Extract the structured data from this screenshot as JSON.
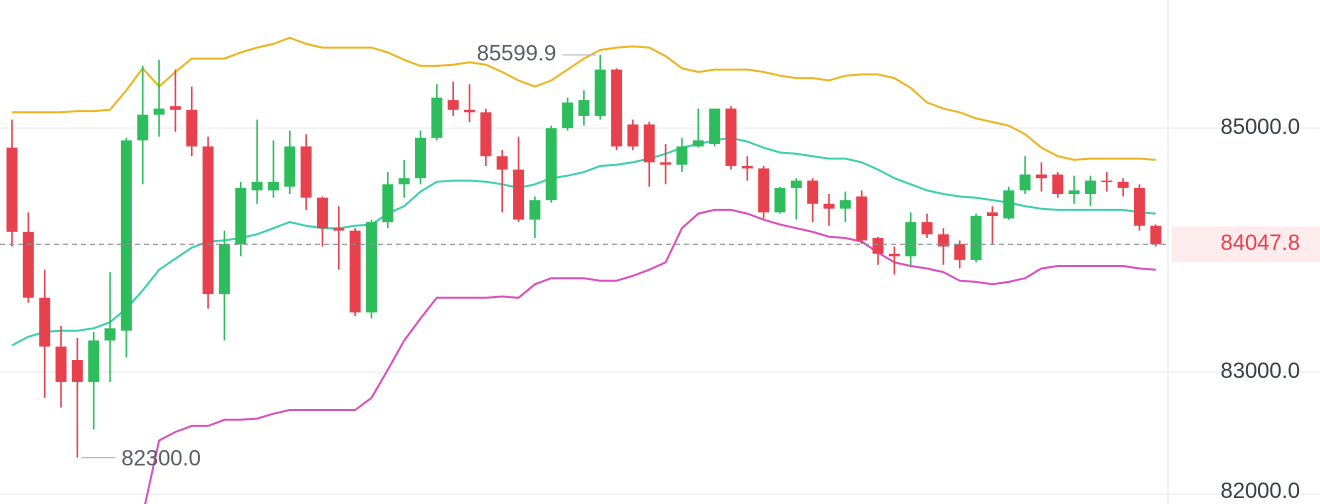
{
  "chart_data": {
    "type": "candlestick",
    "up_color": "#2ebd5c",
    "down_color": "#e8414e",
    "ylim": [
      81920,
      86050
    ],
    "yticks": [
      {
        "value": 82000,
        "label": "82000.0"
      },
      {
        "value": 83000,
        "label": "83000.0"
      },
      {
        "value": 85000,
        "label": "85000.0"
      }
    ],
    "grid": true,
    "last_price": 84047.8,
    "open": [
      84840,
      84150,
      83610,
      83210,
      83100,
      82920,
      83260,
      83340,
      84900,
      85110,
      85180,
      85150,
      84850,
      83640,
      84050,
      84490,
      84490,
      84520,
      84850,
      84430,
      84180,
      84160,
      83490,
      84230,
      84540,
      84590,
      84920,
      85230,
      85150,
      85130,
      84770,
      84660,
      84250,
      84410,
      85000,
      85100,
      85100,
      85480,
      85030,
      85030,
      84720,
      84700,
      84850,
      84870,
      85160,
      84690,
      84670,
      84310,
      84510,
      84570,
      84380,
      84340,
      84440,
      84100,
      83970,
      83950,
      84230,
      84130,
      84050,
      83920,
      84310,
      84260,
      84490,
      84620,
      84620,
      84460,
      84460,
      84570,
      84560,
      84510,
      84200
    ],
    "high": [
      85070,
      84310,
      83840,
      83380,
      83280,
      83330,
      83820,
      84920,
      85510,
      85560,
      85480,
      85340,
      84930,
      84160,
      84560,
      85070,
      84900,
      84980,
      84950,
      84440,
      84360,
      84180,
      84250,
      84640,
      84740,
      84980,
      85360,
      85380,
      85360,
      85160,
      84820,
      84930,
      84440,
      85020,
      85250,
      85310,
      85599.9,
      85490,
      85070,
      85050,
      84870,
      84920,
      85160,
      85160,
      85180,
      84770,
      84690,
      84520,
      84590,
      84590,
      84460,
      84480,
      84490,
      84110,
      84030,
      84310,
      84300,
      84180,
      84080,
      84300,
      84360,
      84520,
      84770,
      84720,
      84640,
      84610,
      84610,
      84640,
      84590,
      84540,
      84210
    ],
    "low": [
      84030,
      83570,
      82790,
      82710,
      82300,
      82530,
      82920,
      83120,
      84540,
      84930,
      84970,
      84770,
      83520,
      83260,
      83950,
      84380,
      84430,
      84460,
      84330,
      84030,
      83840,
      83460,
      83440,
      84180,
      84430,
      84540,
      84900,
      85100,
      85050,
      84690,
      84310,
      84230,
      84100,
      84390,
      84980,
      85020,
      85070,
      84820,
      84820,
      84520,
      84540,
      84640,
      84840,
      84850,
      84660,
      84570,
      84260,
      84300,
      84250,
      84230,
      84200,
      84230,
      84050,
      83880,
      83800,
      83870,
      84100,
      83880,
      83850,
      83900,
      84050,
      84250,
      84460,
      84480,
      84430,
      84380,
      84360,
      84480,
      84440,
      84160,
      84030
    ],
    "close": [
      84150,
      83610,
      83210,
      82920,
      82920,
      83260,
      83360,
      84900,
      85110,
      85160,
      85150,
      84850,
      83640,
      84050,
      84510,
      84560,
      84560,
      84850,
      84430,
      84180,
      84160,
      83490,
      84230,
      84540,
      84590,
      84920,
      85250,
      85150,
      85130,
      84770,
      84660,
      84250,
      84410,
      85000,
      85210,
      85230,
      85480,
      84850,
      84850,
      84720,
      84700,
      84850,
      84900,
      85160,
      84690,
      84670,
      84310,
      84510,
      84570,
      84380,
      84340,
      84410,
      84080,
      83970,
      83950,
      84230,
      84130,
      84030,
      83920,
      84280,
      84280,
      84490,
      84620,
      84590,
      84460,
      84490,
      84570,
      84560,
      84510,
      84200,
      84047.8
    ],
    "bands": [
      {
        "color": "#ecb51f",
        "values": [
          85130,
          85130,
          85130,
          85130,
          85140,
          85140,
          85150,
          85310,
          85490,
          85340,
          85460,
          85570,
          85570,
          85570,
          85620,
          85660,
          85690,
          85740,
          85690,
          85660,
          85660,
          85660,
          85660,
          85620,
          85560,
          85510,
          85510,
          85520,
          85540,
          85520,
          85460,
          85390,
          85340,
          85390,
          85480,
          85570,
          85640,
          85660,
          85670,
          85660,
          85590,
          85490,
          85460,
          85480,
          85480,
          85480,
          85460,
          85430,
          85410,
          85410,
          85390,
          85430,
          85440,
          85440,
          85410,
          85330,
          85210,
          85160,
          85130,
          85080,
          85050,
          85020,
          84950,
          84840,
          84770,
          84740,
          84750,
          84750,
          84750,
          84750,
          84740
        ]
      },
      {
        "color": "#3ccfae",
        "values": [
          83220,
          83290,
          83330,
          83340,
          83340,
          83360,
          83410,
          83520,
          83670,
          83840,
          83930,
          84020,
          84070,
          84080,
          84100,
          84130,
          84180,
          84230,
          84200,
          84180,
          84180,
          84200,
          84210,
          84300,
          84360,
          84480,
          84560,
          84570,
          84570,
          84560,
          84540,
          84510,
          84540,
          84590,
          84610,
          84640,
          84690,
          84700,
          84720,
          84750,
          84790,
          84840,
          84870,
          84900,
          84920,
          84890,
          84840,
          84800,
          84790,
          84770,
          84750,
          84750,
          84720,
          84660,
          84590,
          84540,
          84490,
          84460,
          84440,
          84430,
          84410,
          84390,
          84360,
          84340,
          84330,
          84330,
          84330,
          84330,
          84330,
          84310,
          84300
        ]
      },
      {
        "color": "#d94fbd",
        "values": [
          null,
          null,
          null,
          null,
          null,
          null,
          null,
          null,
          81830,
          82440,
          82510,
          82560,
          82560,
          82610,
          82610,
          82620,
          82660,
          82690,
          82690,
          82690,
          82690,
          82690,
          82790,
          83020,
          83260,
          83440,
          83610,
          83610,
          83610,
          83610,
          83620,
          83610,
          83720,
          83770,
          83770,
          83770,
          83750,
          83750,
          83790,
          83840,
          83900,
          84180,
          84300,
          84330,
          84330,
          84300,
          84250,
          84210,
          84180,
          84150,
          84110,
          84100,
          84070,
          83980,
          83900,
          83870,
          83850,
          83820,
          83750,
          83740,
          83720,
          83740,
          83770,
          83850,
          83870,
          83870,
          83870,
          83870,
          83870,
          83850,
          83840
        ]
      }
    ],
    "annotations": [
      {
        "value": 85599.9,
        "text": "85599.9"
      },
      {
        "value": 82300,
        "text": "82300.0"
      }
    ]
  }
}
